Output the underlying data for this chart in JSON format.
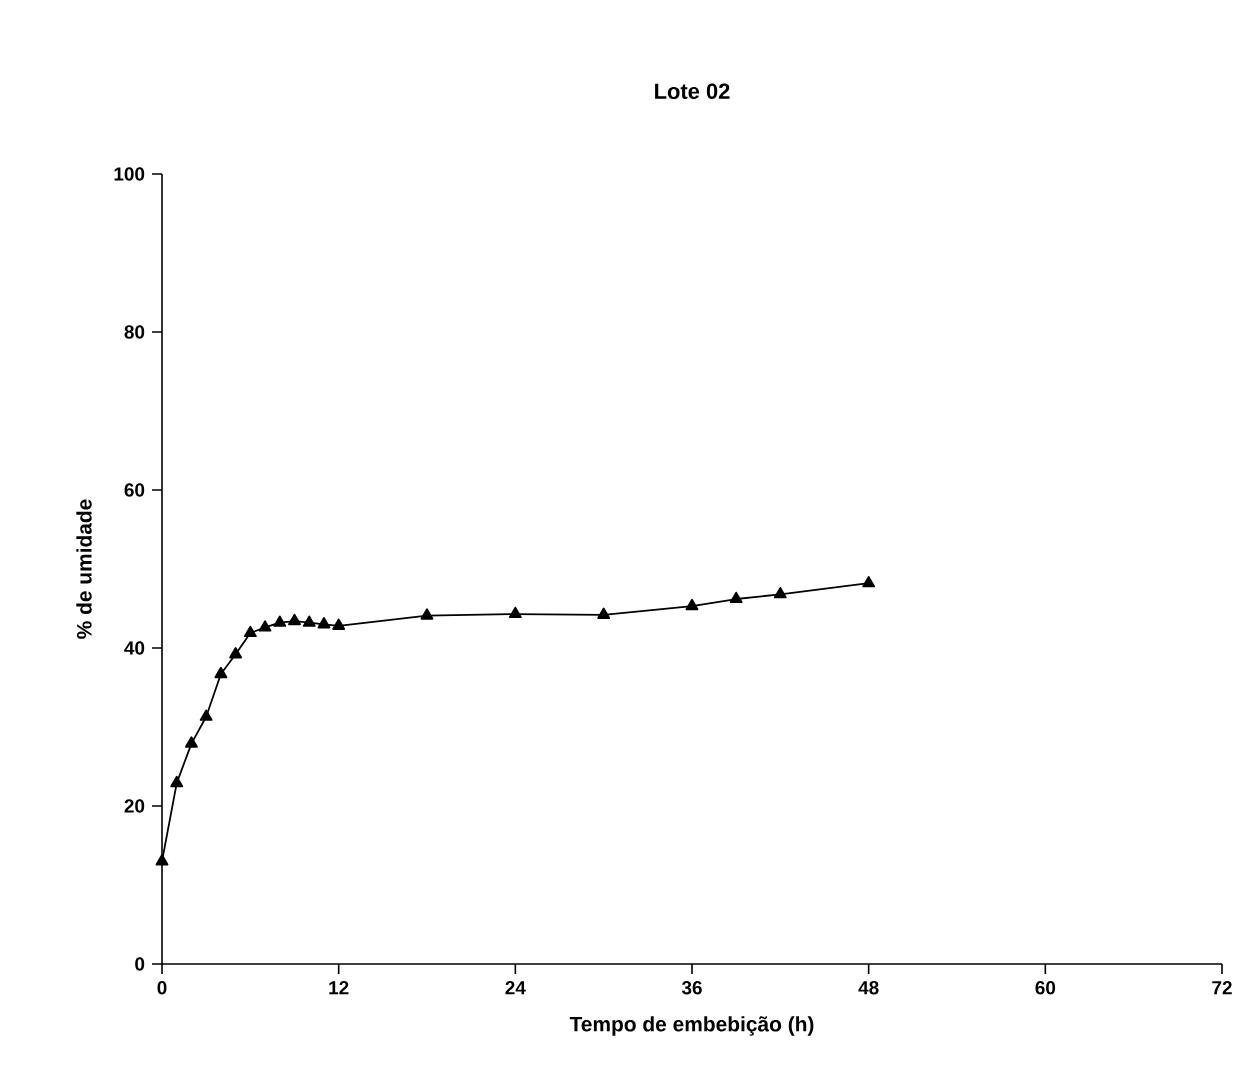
{
  "chart_data": {
    "type": "line",
    "title": "Lote 02",
    "xlabel": "Tempo de embebição (h)",
    "ylabel": "% de umidade",
    "x": [
      0,
      1,
      2,
      3,
      4,
      5,
      6,
      7,
      8,
      9,
      10,
      11,
      12,
      18,
      24,
      30,
      36,
      39,
      42,
      48
    ],
    "series": [
      {
        "color": "#000000",
        "values": [
          13.0,
          22.9,
          27.9,
          31.3,
          36.7,
          39.2,
          41.9,
          42.6,
          43.2,
          43.4,
          43.2,
          43.0,
          42.8,
          44.1,
          44.3,
          44.2,
          45.3,
          46.2,
          46.8,
          48.2
        ]
      }
    ],
    "xlim": [
      0,
      72
    ],
    "xticks": [
      0,
      12,
      24,
      36,
      48,
      60,
      72
    ],
    "ylim": [
      0,
      100
    ],
    "yticks": [
      0,
      20,
      40,
      60,
      80,
      100
    ],
    "marker": "triangle",
    "line_style": "solid"
  }
}
